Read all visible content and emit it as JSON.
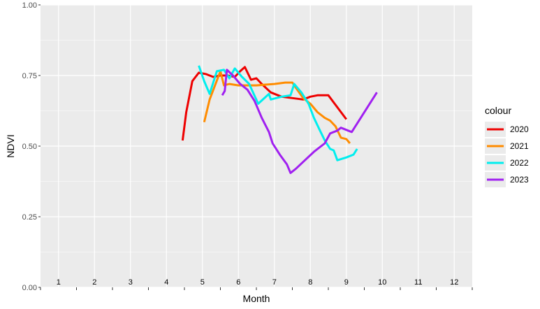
{
  "chart_data": {
    "type": "line",
    "xlabel": "Month",
    "ylabel": "NDVI",
    "x_range": [
      0.5,
      12.5
    ],
    "ylim": [
      0,
      1
    ],
    "y_ticks": [
      "0.00",
      "0.25",
      "0.50",
      "0.75",
      "1.00"
    ],
    "x_tick_labels": [
      "1",
      "2",
      "3",
      "4",
      "5",
      "6",
      "7",
      "8",
      "9",
      "10",
      "11",
      "12"
    ],
    "month_labels_position": "inside-panel-bottom",
    "grid": true,
    "panel_background": "#ebebeb",
    "legend": {
      "title": "colour",
      "position": "right"
    },
    "series": [
      {
        "name": "2020",
        "color": "#ee0000",
        "points": [
          [
            4.45,
            0.52
          ],
          [
            4.55,
            0.62
          ],
          [
            4.72,
            0.73
          ],
          [
            4.9,
            0.76
          ],
          [
            5.1,
            0.755
          ],
          [
            5.3,
            0.745
          ],
          [
            5.5,
            0.75
          ],
          [
            5.7,
            0.75
          ],
          [
            5.9,
            0.745
          ],
          [
            6.05,
            0.765
          ],
          [
            6.18,
            0.78
          ],
          [
            6.35,
            0.735
          ],
          [
            6.5,
            0.74
          ],
          [
            6.65,
            0.72
          ],
          [
            6.9,
            0.69
          ],
          [
            7.2,
            0.675
          ],
          [
            7.5,
            0.67
          ],
          [
            7.8,
            0.665
          ],
          [
            8.0,
            0.675
          ],
          [
            8.2,
            0.68
          ],
          [
            8.5,
            0.68
          ],
          [
            9.0,
            0.595
          ]
        ]
      },
      {
        "name": "2021",
        "color": "#ff8c00",
        "points": [
          [
            5.05,
            0.585
          ],
          [
            5.2,
            0.665
          ],
          [
            5.5,
            0.765
          ],
          [
            5.6,
            0.715
          ],
          [
            5.75,
            0.72
          ],
          [
            6.0,
            0.715
          ],
          [
            6.5,
            0.715
          ],
          [
            7.0,
            0.72
          ],
          [
            7.3,
            0.725
          ],
          [
            7.5,
            0.725
          ],
          [
            7.55,
            0.715
          ],
          [
            7.8,
            0.67
          ],
          [
            8.0,
            0.65
          ],
          [
            8.2,
            0.62
          ],
          [
            8.4,
            0.6
          ],
          [
            8.55,
            0.59
          ],
          [
            8.7,
            0.57
          ],
          [
            8.85,
            0.53
          ],
          [
            9.0,
            0.525
          ],
          [
            9.1,
            0.51
          ]
        ]
      },
      {
        "name": "2022",
        "color": "#00eeee",
        "points": [
          [
            4.9,
            0.785
          ],
          [
            5.05,
            0.73
          ],
          [
            5.2,
            0.685
          ],
          [
            5.4,
            0.765
          ],
          [
            5.6,
            0.77
          ],
          [
            5.75,
            0.74
          ],
          [
            5.9,
            0.775
          ],
          [
            6.1,
            0.745
          ],
          [
            6.3,
            0.72
          ],
          [
            6.55,
            0.65
          ],
          [
            6.85,
            0.685
          ],
          [
            6.9,
            0.665
          ],
          [
            7.2,
            0.675
          ],
          [
            7.45,
            0.68
          ],
          [
            7.55,
            0.72
          ],
          [
            7.75,
            0.69
          ],
          [
            7.95,
            0.65
          ],
          [
            8.1,
            0.6
          ],
          [
            8.25,
            0.56
          ],
          [
            8.4,
            0.52
          ],
          [
            8.55,
            0.49
          ],
          [
            8.65,
            0.485
          ],
          [
            8.75,
            0.45
          ],
          [
            9.0,
            0.46
          ],
          [
            9.2,
            0.47
          ],
          [
            9.3,
            0.49
          ]
        ]
      },
      {
        "name": "2023",
        "color": "#a020f0",
        "points": [
          [
            5.55,
            0.68
          ],
          [
            5.62,
            0.695
          ],
          [
            5.68,
            0.77
          ],
          [
            5.85,
            0.75
          ],
          [
            6.05,
            0.72
          ],
          [
            6.25,
            0.7
          ],
          [
            6.45,
            0.66
          ],
          [
            6.65,
            0.6
          ],
          [
            6.85,
            0.55
          ],
          [
            6.95,
            0.51
          ],
          [
            7.15,
            0.47
          ],
          [
            7.35,
            0.435
          ],
          [
            7.45,
            0.405
          ],
          [
            7.6,
            0.42
          ],
          [
            7.85,
            0.45
          ],
          [
            8.1,
            0.48
          ],
          [
            8.4,
            0.51
          ],
          [
            8.55,
            0.545
          ],
          [
            8.75,
            0.555
          ],
          [
            8.85,
            0.565
          ],
          [
            9.05,
            0.555
          ],
          [
            9.15,
            0.55
          ],
          [
            9.4,
            0.6
          ],
          [
            9.85,
            0.69
          ]
        ]
      }
    ]
  }
}
